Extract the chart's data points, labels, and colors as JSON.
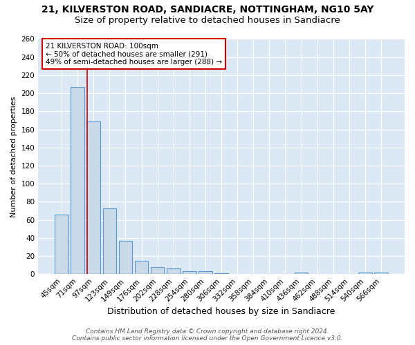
{
  "title1": "21, KILVERSTON ROAD, SANDIACRE, NOTTINGHAM, NG10 5AY",
  "title2": "Size of property relative to detached houses in Sandiacre",
  "xlabel": "Distribution of detached houses by size in Sandiacre",
  "ylabel": "Number of detached properties",
  "categories": [
    "45sqm",
    "71sqm",
    "97sqm",
    "123sqm",
    "149sqm",
    "176sqm",
    "202sqm",
    "228sqm",
    "254sqm",
    "280sqm",
    "306sqm",
    "332sqm",
    "358sqm",
    "384sqm",
    "410sqm",
    "436sqm",
    "462sqm",
    "488sqm",
    "514sqm",
    "540sqm",
    "566sqm"
  ],
  "values": [
    66,
    207,
    169,
    73,
    37,
    15,
    8,
    6,
    3,
    3,
    1,
    0,
    0,
    0,
    0,
    2,
    0,
    0,
    0,
    2,
    2
  ],
  "bar_color": "#c9d9e8",
  "bar_edge_color": "#5b9bd5",
  "red_line_index": 2,
  "annotation_title": "21 KILVERSTON ROAD: 100sqm",
  "annotation_line1": "← 50% of detached houses are smaller (291)",
  "annotation_line2": "49% of semi-detached houses are larger (288) →",
  "annotation_box_color": "#ffffff",
  "annotation_edge_color": "#cc0000",
  "footnote1": "Contains HM Land Registry data © Crown copyright and database right 2024.",
  "footnote2": "Contains public sector information licensed under the Open Government Licence v3.0.",
  "ylim": [
    0,
    260
  ],
  "yticks": [
    0,
    20,
    40,
    60,
    80,
    100,
    120,
    140,
    160,
    180,
    200,
    220,
    240,
    260
  ],
  "bg_color": "#dce8f4",
  "grid_color": "#ffffff",
  "title1_fontsize": 10,
  "title2_fontsize": 9.5,
  "xlabel_fontsize": 9,
  "ylabel_fontsize": 8,
  "tick_fontsize": 7.5,
  "annotation_fontsize": 7.5,
  "footnote_fontsize": 6.5
}
